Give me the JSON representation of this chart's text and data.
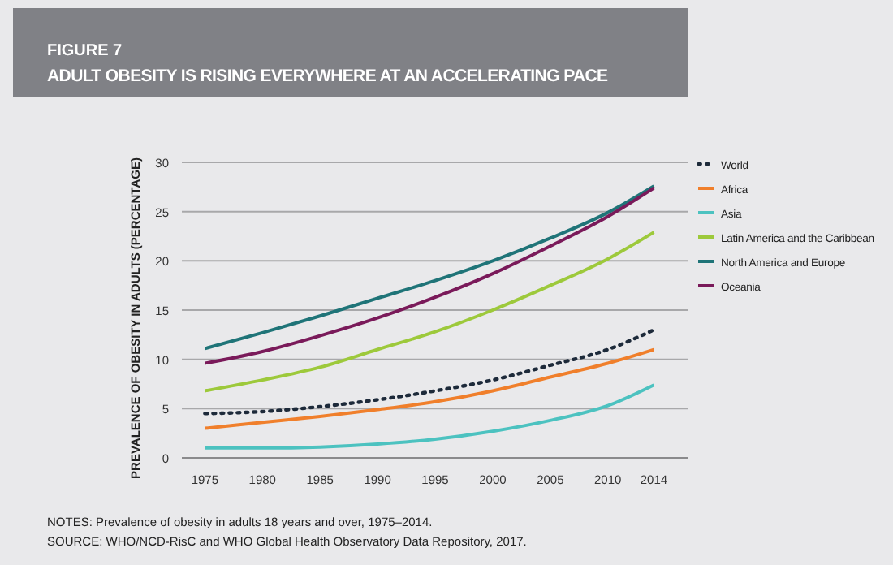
{
  "chart_data": {
    "type": "line",
    "title": "FIGURE 7",
    "subtitle": "ADULT OBESITY IS RISING EVERYWHERE AT AN ACCELERATING PACE",
    "ylabel": "PREVALENCE OF OBESITY IN ADULTS (PERCENTAGE)",
    "annotations": [
      "NOTES: Prevalence of obesity in adults 18 years and over, 1975–2014.",
      "SOURCE: WHO/NCD-RisC and WHO Global Health Observatory Data Repository, 2017."
    ],
    "x": [
      1975,
      1980,
      1985,
      1990,
      1995,
      2000,
      2005,
      2010,
      2014
    ],
    "series": [
      {
        "name": "World",
        "color": "#1d2a3a",
        "line_style": "dotted",
        "values": [
          4.5,
          4.7,
          5.2,
          5.9,
          6.8,
          7.9,
          9.4,
          11.0,
          13.0
        ]
      },
      {
        "name": "Africa",
        "color": "#f07f2b",
        "values": [
          3.0,
          3.6,
          4.2,
          4.9,
          5.7,
          6.8,
          8.2,
          9.6,
          11.0
        ]
      },
      {
        "name": "Asia",
        "color": "#4cc2c0",
        "values": [
          1.0,
          1.0,
          1.1,
          1.4,
          1.9,
          2.7,
          3.8,
          5.3,
          7.4
        ]
      },
      {
        "name": "Latin America and the Caribbean",
        "color": "#9dc93b",
        "values": [
          6.8,
          7.9,
          9.2,
          11.0,
          12.8,
          15.0,
          17.5,
          20.2,
          22.9
        ]
      },
      {
        "name": "North America and Europe",
        "color": "#1f7478",
        "values": [
          11.1,
          12.7,
          14.4,
          16.2,
          18.0,
          20.0,
          22.3,
          24.9,
          27.6
        ]
      },
      {
        "name": "Oceania",
        "color": "#7a1a5a",
        "values": [
          9.6,
          10.8,
          12.4,
          14.2,
          16.3,
          18.7,
          21.5,
          24.5,
          27.4
        ]
      }
    ],
    "xlim": [
      1973,
      2017
    ],
    "xticks": [
      1975,
      1980,
      1985,
      1990,
      1995,
      2000,
      2005,
      2010,
      2014
    ],
    "ylim": [
      0,
      30
    ],
    "yticks": [
      0,
      5,
      10,
      15,
      20,
      25,
      30
    ],
    "grid": "y",
    "legend": "right",
    "line_style": "solid"
  }
}
